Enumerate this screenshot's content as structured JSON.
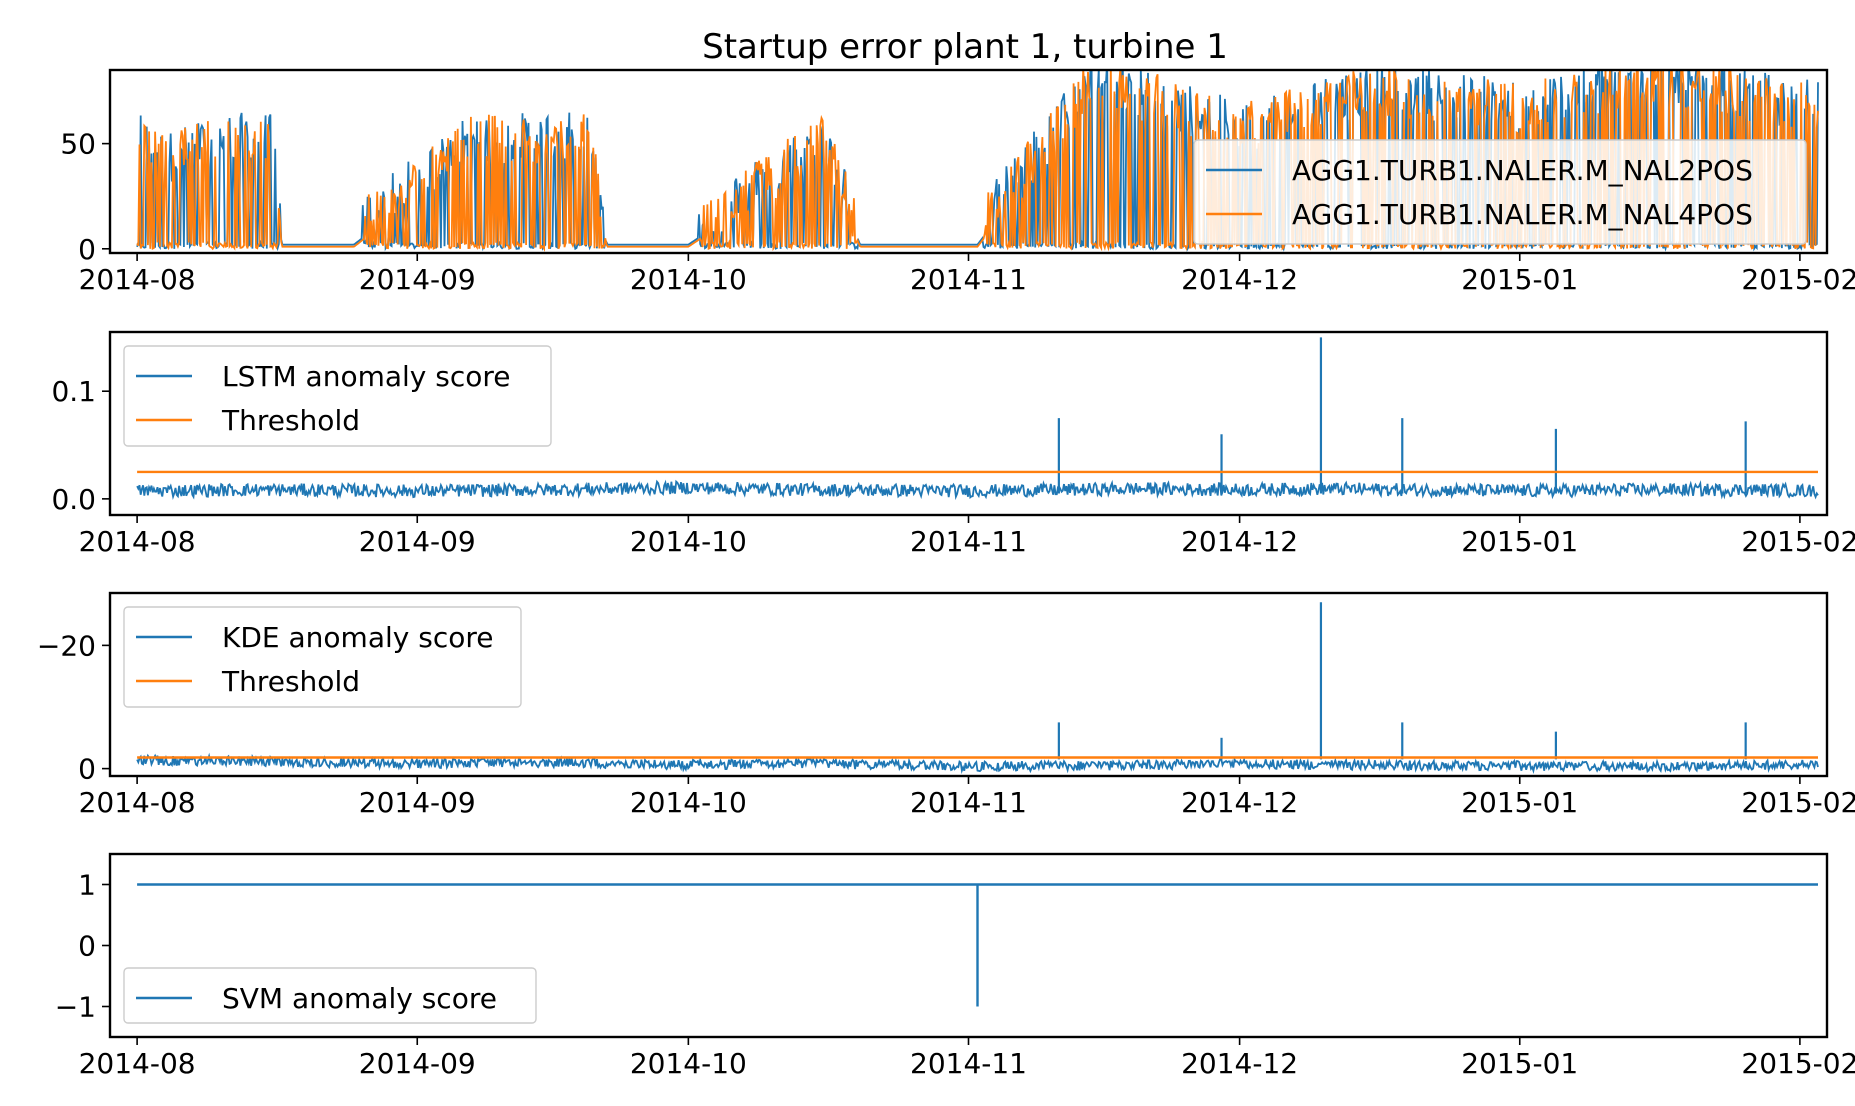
{
  "colors": {
    "blue": "#1f77b4",
    "orange": "#ff7f0e"
  },
  "chart_data": [
    {
      "type": "line",
      "title": "Startup error plant 1, turbine 1",
      "x_type": "date",
      "xlim": [
        "2014-07-29",
        "2015-02-04"
      ],
      "ylim": [
        -2,
        85
      ],
      "xticks": [
        "2014-08",
        "2014-09",
        "2014-10",
        "2014-11",
        "2014-12",
        "2015-01",
        "2015-02"
      ],
      "yticks": [
        0,
        50
      ],
      "legend_position": "center-right",
      "series": [
        {
          "name": "AGG1.TURB1.NALER.M_NAL2POS",
          "color": "#1f77b4",
          "x": [
            "2014-08-01",
            "2014-08-04",
            "2014-08-10",
            "2014-08-16",
            "2014-08-17",
            "2014-08-25",
            "2014-09-07",
            "2014-09-20",
            "2014-09-22",
            "2014-10-01",
            "2014-10-16",
            "2014-10-20",
            "2014-11-02",
            "2014-11-15",
            "2014-12-01",
            "2014-12-16",
            "2015-01-01",
            "2015-01-15",
            "2015-02-03"
          ],
          "values": [
            48,
            35,
            45,
            45,
            2,
            2,
            45,
            45,
            2,
            2,
            45,
            2,
            2,
            75,
            50,
            70,
            60,
            75,
            60
          ]
        },
        {
          "name": "AGG1.TURB1.NALER.M_NAL4POS",
          "color": "#ff7f0e",
          "x": [
            "2014-08-01",
            "2014-08-04",
            "2014-08-10",
            "2014-08-16",
            "2014-08-17",
            "2014-08-25",
            "2014-09-07",
            "2014-09-20",
            "2014-09-22",
            "2014-10-01",
            "2014-10-16",
            "2014-10-20",
            "2014-11-02",
            "2014-11-15",
            "2014-12-01",
            "2014-12-16",
            "2015-01-01",
            "2015-01-15",
            "2015-02-03"
          ],
          "values": [
            47,
            34,
            44,
            44,
            1,
            1,
            44,
            44,
            1,
            1,
            44,
            1,
            1,
            74,
            49,
            69,
            59,
            74,
            59
          ]
        }
      ]
    },
    {
      "type": "line",
      "x_type": "date",
      "xlim": [
        "2014-07-29",
        "2015-02-04"
      ],
      "ylim": [
        -0.015,
        0.155
      ],
      "xticks": [
        "2014-08",
        "2014-09",
        "2014-10",
        "2014-11",
        "2014-12",
        "2015-01",
        "2015-02"
      ],
      "yticks": [
        0.0,
        0.1
      ],
      "ytick_labels": [
        "0.0",
        "0.1"
      ],
      "legend_position": "top-left",
      "series": [
        {
          "name": "LSTM anomaly score",
          "color": "#1f77b4",
          "x": [
            "2014-08-01",
            "2014-08-15",
            "2014-09-01",
            "2014-09-15",
            "2014-10-01",
            "2014-10-15",
            "2014-11-01",
            "2014-11-11",
            "2014-11-20",
            "2014-12-01",
            "2014-12-10",
            "2014-12-20",
            "2015-01-01",
            "2015-01-15",
            "2015-01-27",
            "2015-02-03"
          ],
          "values": [
            0.005,
            0.006,
            0.005,
            0.006,
            0.008,
            0.006,
            0.005,
            0.006,
            0.007,
            0.006,
            0.007,
            0.006,
            0.005,
            0.006,
            0.006,
            0.005
          ],
          "peaks": [
            {
              "x": "2014-11-11",
              "value": 0.075
            },
            {
              "x": "2014-11-29",
              "value": 0.06
            },
            {
              "x": "2014-12-10",
              "value": 0.15
            },
            {
              "x": "2014-12-19",
              "value": 0.075
            },
            {
              "x": "2015-01-05",
              "value": 0.065
            },
            {
              "x": "2015-01-26",
              "value": 0.072
            }
          ]
        },
        {
          "name": "Threshold",
          "color": "#ff7f0e",
          "x": [
            "2014-08-01",
            "2015-02-03"
          ],
          "values": [
            0.025,
            0.025
          ]
        }
      ]
    },
    {
      "type": "line",
      "x_type": "date",
      "xlim": [
        "2014-07-29",
        "2015-02-04"
      ],
      "ylim": [
        -28.5,
        1.2
      ],
      "inverted_y": true,
      "xticks": [
        "2014-08",
        "2014-09",
        "2014-10",
        "2014-11",
        "2014-12",
        "2015-01",
        "2015-02"
      ],
      "yticks": [
        0,
        -20
      ],
      "ytick_labels": [
        "0",
        "−20"
      ],
      "legend_position": "top-left",
      "series": [
        {
          "name": "KDE anomaly score",
          "color": "#1f77b4",
          "x": [
            "2014-08-01",
            "2014-08-15",
            "2014-09-01",
            "2014-09-15",
            "2014-10-01",
            "2014-10-15",
            "2014-11-01",
            "2014-11-11",
            "2014-11-20",
            "2014-12-01",
            "2014-12-10",
            "2014-12-20",
            "2015-01-01",
            "2015-01-15",
            "2015-01-27",
            "2015-02-03"
          ],
          "values": [
            -1.5,
            -1.3,
            -1.0,
            -1.2,
            -0.8,
            -1.0,
            -0.5,
            -0.6,
            -0.7,
            -1.0,
            -0.8,
            -0.7,
            -0.6,
            -0.5,
            -0.7,
            -0.8
          ],
          "peaks": [
            {
              "x": "2014-11-11",
              "value": -7.5
            },
            {
              "x": "2014-11-29",
              "value": -5.0
            },
            {
              "x": "2014-12-10",
              "value": -27.0
            },
            {
              "x": "2014-12-19",
              "value": -7.5
            },
            {
              "x": "2015-01-05",
              "value": -6.0
            },
            {
              "x": "2015-01-26",
              "value": -7.5
            }
          ]
        },
        {
          "name": "Threshold",
          "color": "#ff7f0e",
          "x": [
            "2014-08-01",
            "2015-02-03"
          ],
          "values": [
            -1.8,
            -1.8
          ]
        }
      ]
    },
    {
      "type": "line",
      "x_type": "date",
      "xlim": [
        "2014-07-29",
        "2015-02-04"
      ],
      "ylim": [
        -1.5,
        1.5
      ],
      "xticks": [
        "2014-08",
        "2014-09",
        "2014-10",
        "2014-11",
        "2014-12",
        "2015-01",
        "2015-02"
      ],
      "yticks": [
        1,
        0,
        -1
      ],
      "ytick_labels": [
        "1",
        "0",
        "−1"
      ],
      "legend_position": "bottom-left",
      "series": [
        {
          "name": "SVM anomaly score",
          "color": "#1f77b4",
          "x": [
            "2014-08-01",
            "2014-11-02",
            "2014-11-02",
            "2014-11-02",
            "2015-02-03"
          ],
          "values": [
            1,
            1,
            -1,
            1,
            1
          ]
        }
      ]
    }
  ]
}
